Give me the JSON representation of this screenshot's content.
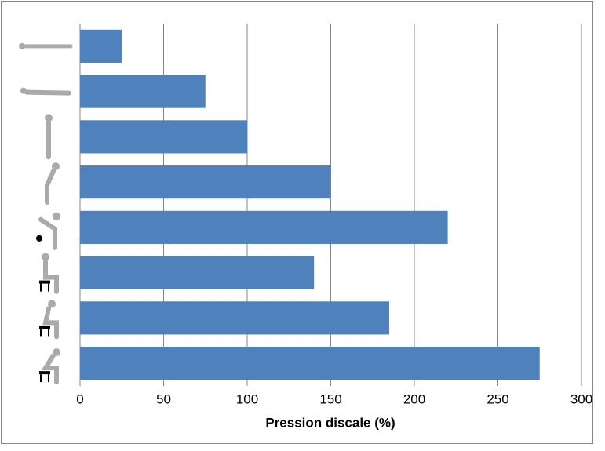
{
  "chart_data": {
    "type": "barh",
    "x_label": "Pression discale (%)",
    "categories": [
      null,
      null,
      null,
      null,
      null,
      null,
      null,
      null
    ],
    "values": [
      25,
      75,
      100,
      150,
      220,
      140,
      185,
      275
    ],
    "color": "#4f81bd",
    "xlim": [
      0,
      300
    ],
    "xticks": [
      0,
      50,
      100,
      150,
      200,
      250,
      300
    ],
    "grid": true
  }
}
